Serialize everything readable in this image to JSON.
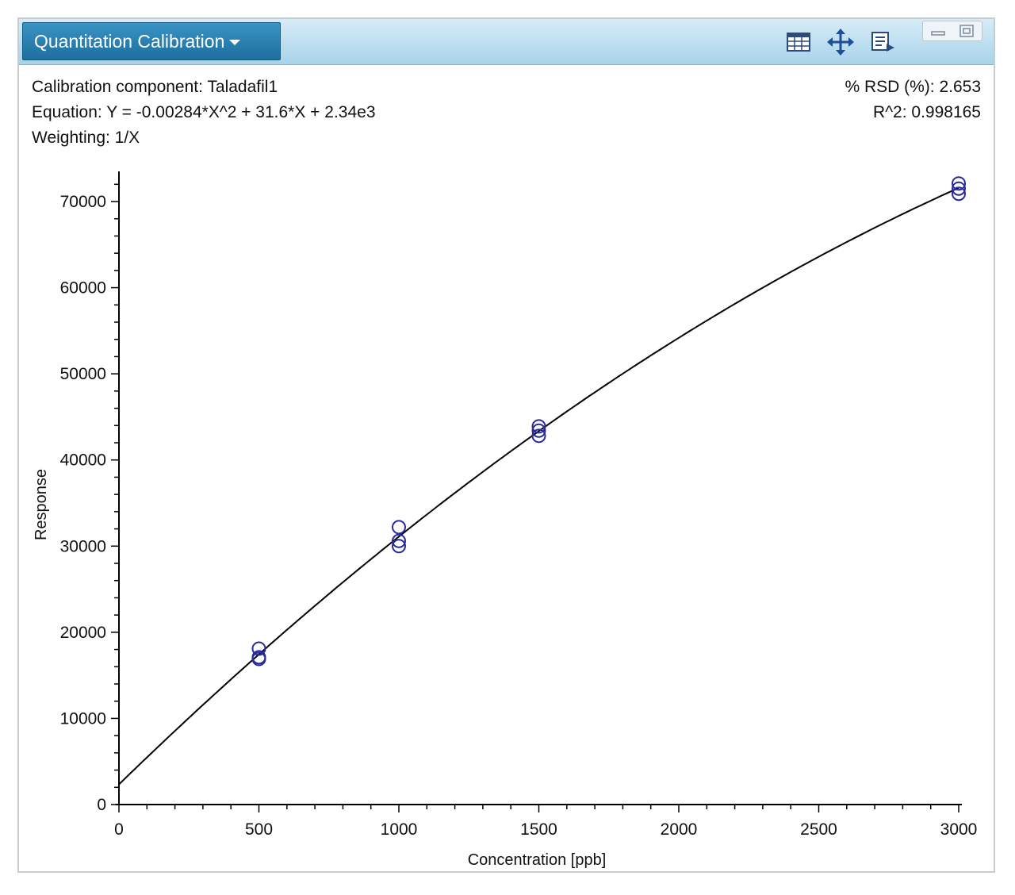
{
  "window": {
    "title": "Quantitation Calibration",
    "toolbar_icons": [
      "table-icon",
      "move-arrows-icon",
      "export-icon"
    ],
    "controls": [
      "minimize-icon",
      "restore-icon"
    ]
  },
  "info": {
    "component": "Calibration component: Taladafil1",
    "equation": "Equation: Y = -0.00284*X^2 + 31.6*X + 2.34e3",
    "weighting": "Weighting: 1/X",
    "rsd": "% RSD (%): 2.653",
    "r2": "R^2: 0.998165"
  },
  "colors": {
    "points": "#2a2a9a",
    "curve": "#000000",
    "header": "#2a86bb"
  },
  "chart_data": {
    "type": "scatter",
    "title": "",
    "xlabel": "Concentration [ppb]",
    "ylabel": "Response",
    "xlim": [
      0,
      3000
    ],
    "ylim": [
      0,
      73500
    ],
    "x_ticks": [
      "0",
      "500",
      "1000",
      "1500",
      "2000",
      "2500",
      "3000"
    ],
    "y_ticks": [
      "0",
      "10000",
      "20000",
      "30000",
      "40000",
      "50000",
      "60000",
      "70000"
    ],
    "grid": false,
    "points": [
      {
        "x": 500,
        "y": 18100
      },
      {
        "x": 500,
        "y": 17100
      },
      {
        "x": 500,
        "y": 16900
      },
      {
        "x": 1000,
        "y": 32200
      },
      {
        "x": 1000,
        "y": 30600
      },
      {
        "x": 1000,
        "y": 30000
      },
      {
        "x": 1500,
        "y": 43900
      },
      {
        "x": 1500,
        "y": 43400
      },
      {
        "x": 1500,
        "y": 42800
      },
      {
        "x": 3000,
        "y": 72100
      },
      {
        "x": 3000,
        "y": 71500
      },
      {
        "x": 3000,
        "y": 70900
      }
    ],
    "fit": {
      "a": -0.00284,
      "b": 31.6,
      "c": 2340
    }
  }
}
